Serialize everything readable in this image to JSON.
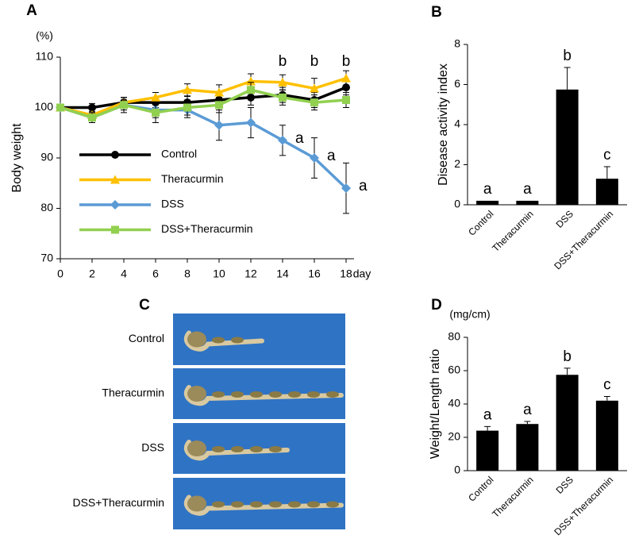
{
  "chart_data": [
    {
      "type": "line",
      "panel": "A",
      "ylabel": "Body weight",
      "y_unit": "(%)",
      "xlabel": "day",
      "x": [
        0,
        2,
        4,
        6,
        8,
        10,
        12,
        14,
        16,
        18
      ],
      "xlim": [
        0,
        18
      ],
      "xticks": [
        0,
        2,
        4,
        6,
        8,
        10,
        12,
        14,
        16,
        18
      ],
      "ylim": [
        70,
        110
      ],
      "yticks": [
        70,
        80,
        90,
        100,
        110
      ],
      "series": [
        {
          "name": "Control",
          "color": "#000000",
          "marker": "circle",
          "values": [
            100,
            100,
            101,
            101,
            101,
            101.5,
            102,
            102.5,
            101.5,
            104
          ],
          "errors": [
            0.5,
            0.8,
            1,
            1,
            1.2,
            1.5,
            1.5,
            1.5,
            1.5,
            1.5
          ]
        },
        {
          "name": "Theracurmin",
          "color": "#ffc000",
          "marker": "triangle",
          "values": [
            100,
            98.5,
            101,
            102,
            103.5,
            103,
            105.2,
            105,
            103.8,
            105.8
          ],
          "errors": [
            0.5,
            1,
            1,
            1,
            1.2,
            1.5,
            1.5,
            1.5,
            2,
            1.5
          ]
        },
        {
          "name": "DSS",
          "color": "#5b9bd5",
          "marker": "diamond",
          "values": [
            100,
            98,
            100.5,
            99.5,
            99.5,
            96.5,
            97,
            93.5,
            90,
            84
          ],
          "errors": [
            0.5,
            1,
            1.5,
            1.5,
            1.5,
            3,
            3,
            3,
            4,
            5
          ],
          "letters": [
            null,
            null,
            null,
            null,
            null,
            null,
            null,
            "a",
            "a",
            "a"
          ]
        },
        {
          "name": "DSS+Theracurmin",
          "color": "#92d050",
          "marker": "square",
          "values": [
            100,
            98,
            100.5,
            99,
            100,
            100.5,
            103.5,
            102,
            101,
            101.5
          ],
          "errors": [
            0.5,
            1,
            1,
            2,
            1.5,
            1.5,
            1.5,
            1.5,
            1.5,
            1.5
          ]
        }
      ],
      "annotations_top": [
        {
          "x": 14,
          "text": "b"
        },
        {
          "x": 16,
          "text": "b"
        },
        {
          "x": 18,
          "text": "b"
        }
      ]
    },
    {
      "type": "bar",
      "panel": "B",
      "ylabel": "Disease activity index",
      "color": "#000000",
      "categories": [
        "Control",
        "Theracurmin",
        "DSS",
        "DSS+Theracurmin"
      ],
      "values": [
        0.2,
        0.2,
        5.75,
        1.3
      ],
      "errors": [
        0,
        0,
        1.1,
        0.6
      ],
      "letters": [
        "a",
        "a",
        "b",
        "c"
      ],
      "ylim": [
        0,
        8
      ],
      "yticks": [
        0,
        2,
        4,
        6,
        8
      ]
    },
    {
      "type": "bar",
      "panel": "D",
      "ylabel": "Weight/Length ratio",
      "y_unit": "(mg/cm)",
      "color": "#000000",
      "categories": [
        "Control",
        "Theracurmin",
        "DSS",
        "DSS+Theracurmin"
      ],
      "values": [
        24,
        28,
        57.5,
        42
      ],
      "errors": [
        2.5,
        1.5,
        4,
        2.5
      ],
      "letters": [
        "a",
        "a",
        "b",
        "c"
      ],
      "ylim": [
        0,
        80
      ],
      "yticks": [
        0,
        20,
        40,
        60,
        80
      ]
    }
  ],
  "photo_panel": {
    "panel": "C",
    "labels": [
      "Control",
      "Theracurmin",
      "DSS",
      "DSS+Theracurmin"
    ]
  }
}
